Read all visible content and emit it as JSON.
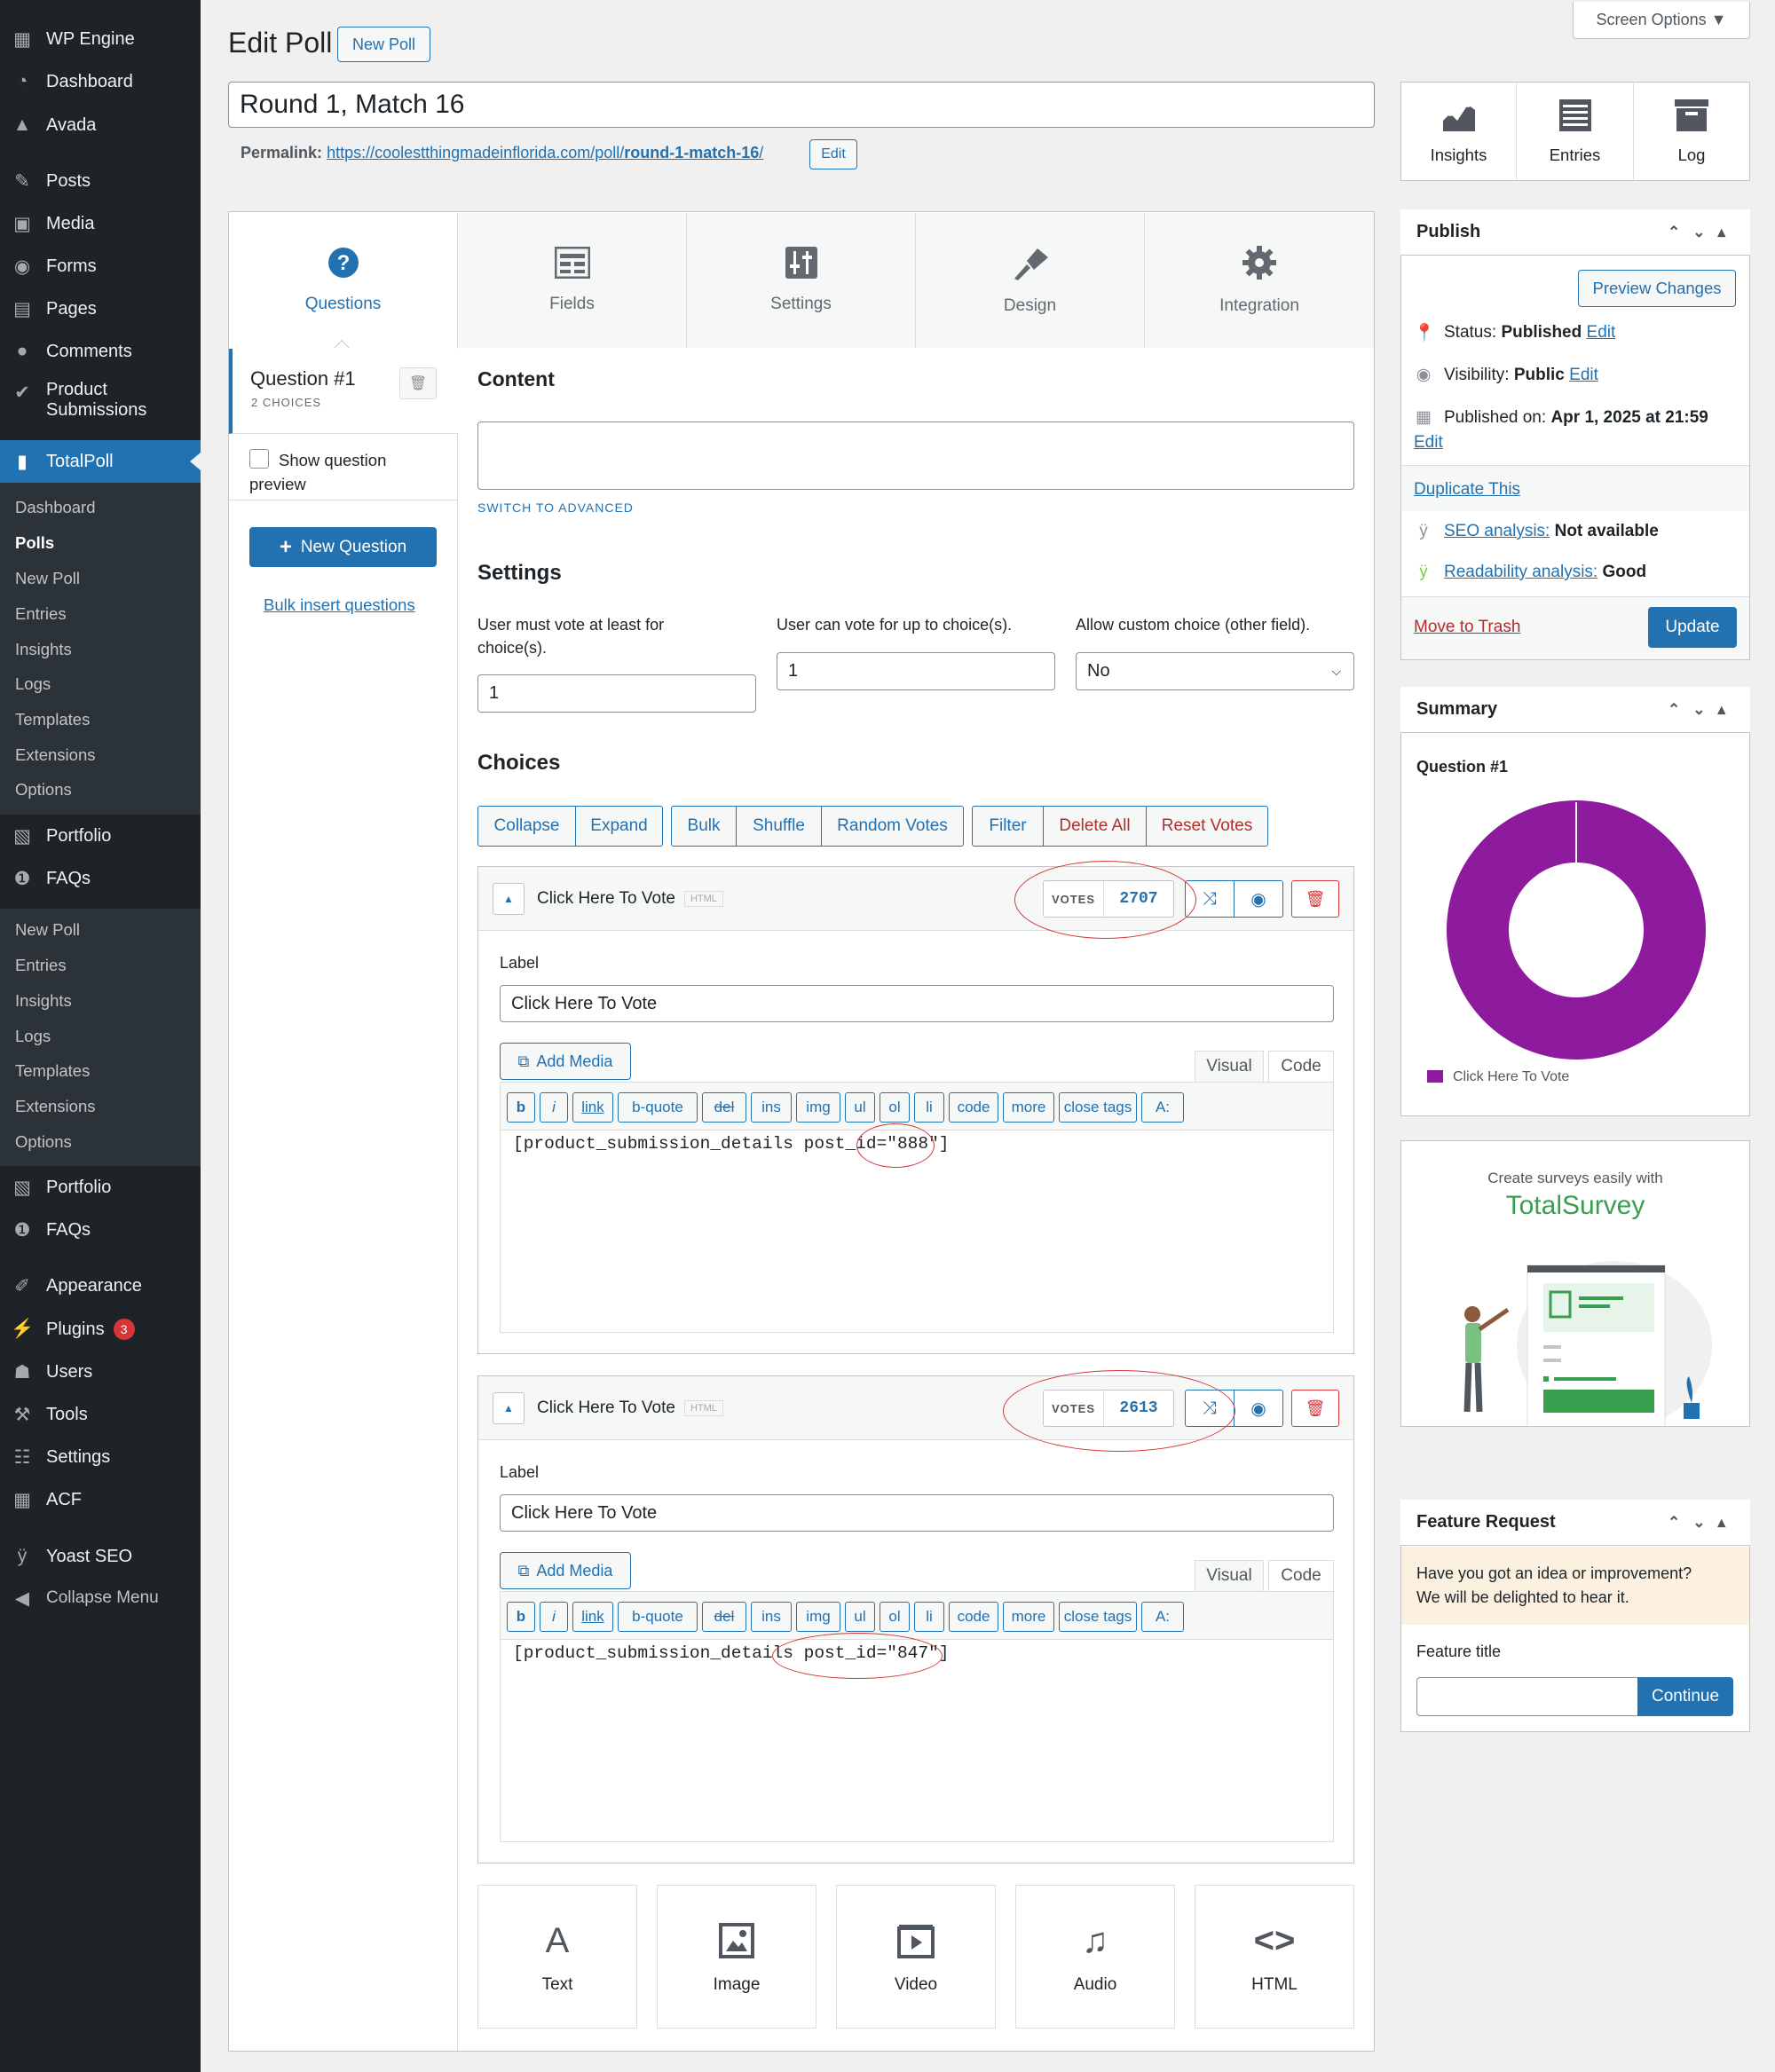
{
  "sidebar": {
    "items": [
      {
        "icon": "wpengine-icon",
        "label": "WP Engine"
      },
      {
        "icon": "dashboard-icon",
        "label": "Dashboard"
      },
      {
        "icon": "avada-icon",
        "label": "Avada"
      },
      {
        "icon": "posts-icon",
        "label": "Posts"
      },
      {
        "icon": "media-icon",
        "label": "Media"
      },
      {
        "icon": "forms-icon",
        "label": "Forms"
      },
      {
        "icon": "pages-icon",
        "label": "Pages"
      },
      {
        "icon": "comments-icon",
        "label": "Comments"
      },
      {
        "icon": "product-submissions-icon",
        "label": "Product",
        "label2": "Submissions"
      },
      {
        "icon": "totalpoll-icon",
        "label": "TotalPoll"
      }
    ],
    "submenu1": [
      "Dashboard",
      "Polls",
      "New Poll",
      "Entries",
      "Insights",
      "Logs",
      "Templates",
      "Extensions",
      "Options"
    ],
    "items2": [
      {
        "icon": "portfolio-icon",
        "label": "Portfolio"
      },
      {
        "icon": "faqs-icon",
        "label": "FAQs"
      }
    ],
    "submenu2": [
      "New Poll",
      "Entries",
      "Insights",
      "Logs",
      "Templates",
      "Extensions",
      "Options"
    ],
    "items3": [
      {
        "icon": "portfolio-icon",
        "label": "Portfolio"
      },
      {
        "icon": "faqs-icon",
        "label": "FAQs"
      },
      {
        "icon": "appearance-icon",
        "label": "Appearance"
      },
      {
        "icon": "plugins-icon",
        "label": "Plugins",
        "badge": "3"
      },
      {
        "icon": "users-icon",
        "label": "Users"
      },
      {
        "icon": "tools-icon",
        "label": "Tools"
      },
      {
        "icon": "settings-icon",
        "label": "Settings"
      },
      {
        "icon": "acf-icon",
        "label": "ACF"
      },
      {
        "icon": "yoast-icon",
        "label": "Yoast SEO"
      },
      {
        "icon": "collapse-icon",
        "label": "Collapse Menu"
      }
    ]
  },
  "header": {
    "title": "Edit Poll",
    "new_poll": "New Poll",
    "screen_options": "Screen Options ▼"
  },
  "post": {
    "title": "Round 1, Match 16",
    "permalink_label": "Permalink:",
    "permalink_base": "https://coolestthingmadeinflorida.com/poll/",
    "permalink_slug": "round-1-match-16",
    "permalink_end": "/",
    "edit": "Edit"
  },
  "tabs": [
    "Questions",
    "Fields",
    "Settings",
    "Design",
    "Integration"
  ],
  "question": {
    "title": "Question #1",
    "choices_count": "2 CHOICES",
    "show_preview": "Show question",
    "show_preview2": "preview",
    "new_question": "New Question",
    "bulk_insert": "Bulk insert questions",
    "content_heading": "Content",
    "switch_advanced": "SWITCH TO ADVANCED",
    "settings_heading": "Settings",
    "min_label": "User must vote at least for",
    "min_label2": "choice(s).",
    "min_value": "1",
    "max_label": "User can vote for up to choice(s).",
    "max_value": "1",
    "custom_label": "Allow custom choice (other field).",
    "custom_value": "No",
    "choices_heading": "Choices",
    "choice_buttons": [
      "Collapse",
      "Expand",
      "Bulk",
      "Shuffle",
      "Random Votes",
      "Filter",
      "Delete All",
      "Reset Votes"
    ]
  },
  "choices": [
    {
      "title": "Click Here To Vote",
      "tag": "HTML",
      "votes_label": "VOTES",
      "votes": "2707",
      "label_heading": "Label",
      "label_value": "Click Here To Vote",
      "add_media": "Add Media",
      "visual": "Visual",
      "code": "Code",
      "content": "[product_submission_details post_id=\"888\"]"
    },
    {
      "title": "Click Here To Vote",
      "tag": "HTML",
      "votes_label": "VOTES",
      "votes": "2613",
      "label_heading": "Label",
      "label_value": "Click Here To Vote",
      "add_media": "Add Media",
      "visual": "Visual",
      "code": "Code",
      "content": "[product_submission_details post_id=\"847\"]"
    }
  ],
  "quicktags": [
    "b",
    "i",
    "link",
    "b-quote",
    "del",
    "ins",
    "img",
    "ul",
    "ol",
    "li",
    "code",
    "more",
    "close tags",
    "A:"
  ],
  "add_types": [
    {
      "glyph": "A",
      "label": "Text"
    },
    {
      "glyph": "image-icon",
      "label": "Image"
    },
    {
      "glyph": "video-icon",
      "label": "Video"
    },
    {
      "glyph": "audio-icon",
      "label": "Audio"
    },
    {
      "glyph": "<>",
      "label": "HTML"
    }
  ],
  "toolbar_right": [
    "Insights",
    "Entries",
    "Log"
  ],
  "publish": {
    "heading": "Publish",
    "preview": "Preview Changes",
    "status_label": "Status:",
    "status": "Published",
    "visibility_label": "Visibility:",
    "visibility": "Public",
    "published_label": "Published on:",
    "published": "Apr 1, 2025 at 21:59",
    "edit": "Edit",
    "duplicate": "Duplicate This",
    "seo_label": "SEO analysis:",
    "seo": "Not available",
    "readability_label": "Readability analysis:",
    "readability": "Good",
    "trash": "Move to Trash",
    "update": "Update"
  },
  "summary": {
    "heading": "Summary",
    "question": "Question #1",
    "legend": "Click Here To Vote",
    "color": "#8e1a9e"
  },
  "chart_data": {
    "type": "pie",
    "categories": [
      "Click Here To Vote"
    ],
    "values": [
      100
    ],
    "title": "Question #1"
  },
  "promo": {
    "line1": "Create surveys easily with",
    "brand": "TotalSurvey"
  },
  "feature": {
    "heading": "Feature Request",
    "text1": "Have you got an idea or improvement?",
    "text2": "We will be delighted to hear it.",
    "field_label": "Feature title",
    "continue": "Continue"
  },
  "colors": {
    "accent": "#2271b1",
    "sidebar": "#1d2327",
    "danger": "#d63638"
  }
}
